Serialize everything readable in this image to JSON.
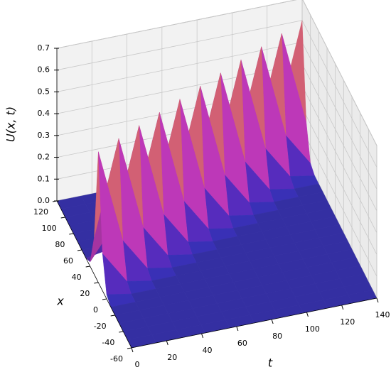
{
  "chart_data": {
    "type": "surface3d",
    "t_label": "t",
    "x_label": "x",
    "z_label": "U(x, t)",
    "colormap": "plasma",
    "tlim": [
      0,
      140
    ],
    "tticks": [
      0,
      20,
      40,
      60,
      80,
      100,
      120,
      140
    ],
    "xlim": [
      -60,
      120
    ],
    "xticks": [
      -60,
      -40,
      -20,
      0,
      20,
      40,
      60,
      80,
      100,
      120
    ],
    "zlim": [
      0,
      0.7
    ],
    "zticks": [
      {
        "value": 0,
        "label": "0.0"
      },
      {
        "value": 0.1,
        "label": "0.1"
      },
      {
        "value": 0.2,
        "label": "0.2"
      },
      {
        "value": 0.3,
        "label": "0.3"
      },
      {
        "value": 0.4,
        "label": "0.4"
      },
      {
        "value": 0.5,
        "label": "0.5"
      },
      {
        "value": 0.6,
        "label": "0.6"
      },
      {
        "value": 0.7,
        "label": "0.7"
      }
    ],
    "t": [
      0,
      14,
      28,
      42,
      56,
      70,
      84,
      98,
      112,
      126,
      140
    ],
    "x": [
      -60,
      -50,
      -40,
      -30,
      -20,
      -10,
      0,
      10,
      20,
      30,
      40,
      50,
      60,
      70,
      80,
      90,
      100,
      110,
      120
    ],
    "z": [
      [
        0,
        0,
        0,
        0,
        0,
        0,
        0.02,
        0.17,
        0.6,
        0.17,
        0.02,
        0,
        0,
        0,
        0,
        0,
        0,
        0,
        0
      ],
      [
        0,
        0,
        0,
        0,
        0,
        0,
        0,
        0.02,
        0.17,
        0.6,
        0.17,
        0.02,
        0,
        0,
        0,
        0,
        0,
        0,
        0
      ],
      [
        0,
        0,
        0,
        0,
        0,
        0,
        0,
        0,
        0.02,
        0.17,
        0.6,
        0.17,
        0.02,
        0,
        0,
        0,
        0,
        0,
        0
      ],
      [
        0,
        0,
        0,
        0,
        0,
        0,
        0,
        0,
        0,
        0.02,
        0.17,
        0.6,
        0.17,
        0.02,
        0,
        0,
        0,
        0,
        0
      ],
      [
        0,
        0,
        0,
        0,
        0,
        0,
        0,
        0,
        0,
        0,
        0.02,
        0.17,
        0.6,
        0.17,
        0.02,
        0,
        0,
        0,
        0
      ],
      [
        0,
        0,
        0,
        0,
        0,
        0,
        0,
        0,
        0,
        0,
        0,
        0.02,
        0.17,
        0.6,
        0.17,
        0.02,
        0,
        0,
        0
      ],
      [
        0,
        0,
        0,
        0,
        0,
        0,
        0,
        0,
        0,
        0,
        0,
        0,
        0.02,
        0.17,
        0.6,
        0.17,
        0.02,
        0,
        0
      ],
      [
        0,
        0,
        0,
        0,
        0,
        0,
        0,
        0,
        0,
        0,
        0,
        0,
        0,
        0.02,
        0.17,
        0.6,
        0.17,
        0.02,
        0
      ],
      [
        0,
        0,
        0,
        0,
        0,
        0,
        0,
        0,
        0,
        0,
        0,
        0,
        0,
        0,
        0.02,
        0.17,
        0.6,
        0.17,
        0.02
      ],
      [
        0,
        0,
        0,
        0,
        0,
        0,
        0,
        0,
        0,
        0,
        0,
        0,
        0,
        0,
        0,
        0.02,
        0.17,
        0.6,
        0.17
      ],
      [
        0,
        0,
        0,
        0,
        0,
        0,
        0,
        0,
        0,
        0,
        0,
        0,
        0,
        0,
        0,
        0,
        0.02,
        0.17,
        0.6
      ]
    ]
  }
}
